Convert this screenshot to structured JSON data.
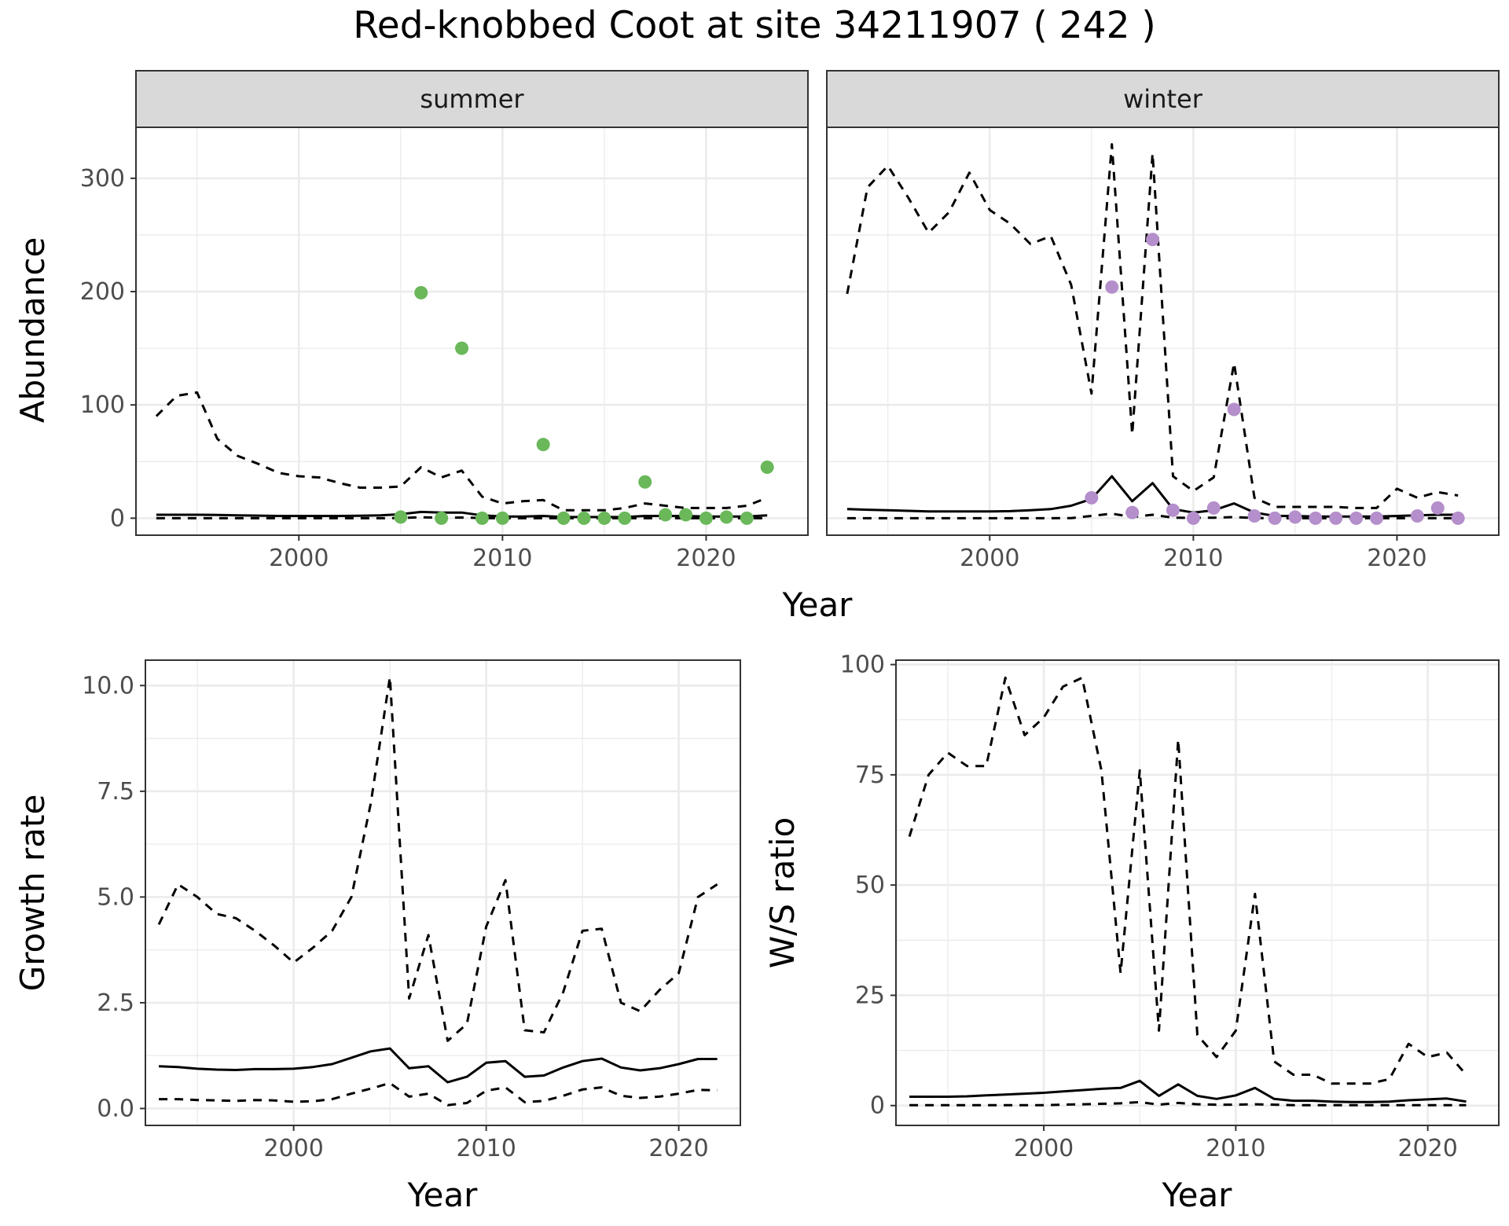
{
  "title": "Red-knobbed Coot at site 34211907 ( 242 )",
  "colors": {
    "summer_points": "#6ab85a",
    "winter_points": "#b48fcb",
    "lines": "#000000",
    "grid": "#ebebeb",
    "strip": "#d9d9d9",
    "panel_border": "#333333"
  },
  "chart_data": [
    {
      "type": "line",
      "facet": "summer",
      "strip_label": "summer",
      "xlabel": "Year",
      "ylabel": "Abundance",
      "xlim": [
        1992,
        2025
      ],
      "ylim": [
        -15,
        345
      ],
      "x_ticks": [
        2000,
        2010,
        2020
      ],
      "x_tick_labels": [
        "2000",
        "2010",
        "2020"
      ],
      "y_ticks": [
        0,
        100,
        200,
        300
      ],
      "y_tick_labels": [
        "0",
        "100",
        "200",
        "300"
      ],
      "grid": true,
      "series": [
        {
          "style": "dashed",
          "x": [
            1993,
            1994,
            1995,
            1996,
            1997,
            1998,
            1999,
            2000,
            2001,
            2002,
            2003,
            2004,
            2005,
            2006,
            2007,
            2008,
            2009,
            2010,
            2011,
            2012,
            2013,
            2014,
            2015,
            2016,
            2017,
            2018,
            2019,
            2020,
            2021,
            2022,
            2023
          ],
          "y": [
            90,
            108,
            111,
            70,
            55,
            48,
            40,
            37,
            36,
            31,
            27,
            27,
            28,
            45,
            36,
            42,
            19,
            13,
            15,
            16,
            7,
            7,
            7,
            9,
            13,
            11,
            9,
            9,
            9,
            11,
            18
          ]
        },
        {
          "style": "solid",
          "x": [
            1993,
            1994,
            1995,
            1996,
            1997,
            1998,
            1999,
            2000,
            2001,
            2002,
            2003,
            2004,
            2005,
            2006,
            2007,
            2008,
            2009,
            2010,
            2011,
            2012,
            2013,
            2014,
            2015,
            2016,
            2017,
            2018,
            2019,
            2020,
            2021,
            2022,
            2023
          ],
          "y": [
            3,
            3,
            3,
            2.8,
            2.5,
            2.3,
            2,
            2,
            2,
            2,
            2.1,
            2.5,
            3.5,
            5.5,
            5,
            5,
            2.5,
            1.5,
            1.5,
            2,
            1,
            1,
            1,
            1,
            2,
            2,
            2,
            1.5,
            1.5,
            1.5,
            2.5
          ]
        },
        {
          "style": "dashed",
          "x": [
            1993,
            1994,
            1995,
            1996,
            1997,
            1998,
            1999,
            2000,
            2001,
            2002,
            2003,
            2004,
            2005,
            2006,
            2007,
            2008,
            2009,
            2010,
            2011,
            2012,
            2013,
            2014,
            2015,
            2016,
            2017,
            2018,
            2019,
            2020,
            2021,
            2022,
            2023
          ],
          "y": [
            0,
            0,
            0,
            0,
            0,
            0,
            0,
            0,
            0,
            0,
            0,
            0,
            0.2,
            0.8,
            0.5,
            0.6,
            0.1,
            0,
            0,
            0,
            0,
            0,
            0,
            0,
            0,
            0,
            0,
            0,
            0,
            0,
            0
          ]
        }
      ],
      "points": {
        "x": [
          2005,
          2006,
          2007,
          2008,
          2009,
          2010,
          2012,
          2013,
          2014,
          2015,
          2016,
          2017,
          2018,
          2019,
          2020,
          2021,
          2022,
          2023
        ],
        "y": [
          1,
          199,
          0,
          150,
          0,
          0,
          65,
          0,
          0,
          0,
          0,
          32,
          3,
          3,
          0,
          1,
          0,
          45
        ]
      }
    },
    {
      "type": "line",
      "facet": "winter",
      "strip_label": "winter",
      "xlabel": "Year",
      "ylabel": "Abundance",
      "xlim": [
        1992,
        2025
      ],
      "ylim": [
        -15,
        345
      ],
      "x_ticks": [
        2000,
        2010,
        2020
      ],
      "x_tick_labels": [
        "2000",
        "2010",
        "2020"
      ],
      "y_ticks": [
        0,
        100,
        200,
        300
      ],
      "grid": true,
      "series": [
        {
          "style": "dashed",
          "x": [
            1993,
            1994,
            1995,
            1996,
            1997,
            1998,
            1999,
            2000,
            2001,
            2002,
            2003,
            2004,
            2005,
            2006,
            2007,
            2008,
            2009,
            2010,
            2011,
            2012,
            2013,
            2014,
            2015,
            2016,
            2017,
            2018,
            2019,
            2020,
            2021,
            2022,
            2023
          ],
          "y": [
            198,
            292,
            311,
            283,
            252,
            270,
            305,
            272,
            260,
            242,
            249,
            206,
            110,
            330,
            74,
            322,
            37,
            24,
            36,
            137,
            18,
            10,
            10,
            10,
            10,
            9,
            9,
            26,
            18,
            23,
            20
          ]
        },
        {
          "style": "solid",
          "x": [
            1993,
            1994,
            1995,
            1996,
            1997,
            1998,
            1999,
            2000,
            2001,
            2002,
            2003,
            2004,
            2005,
            2006,
            2007,
            2008,
            2009,
            2010,
            2011,
            2012,
            2013,
            2014,
            2015,
            2016,
            2017,
            2018,
            2019,
            2020,
            2021,
            2022,
            2023
          ],
          "y": [
            8,
            7.5,
            7,
            6.5,
            6,
            6,
            6,
            6,
            6.2,
            7,
            8,
            11,
            17,
            37,
            15,
            31,
            8,
            5,
            7,
            13,
            5,
            2,
            2,
            1.5,
            1.5,
            1.5,
            1.5,
            2,
            2.5,
            3,
            3
          ]
        },
        {
          "style": "dashed",
          "x": [
            1993,
            1994,
            1995,
            1996,
            1997,
            1998,
            1999,
            2000,
            2001,
            2002,
            2003,
            2004,
            2005,
            2006,
            2007,
            2008,
            2009,
            2010,
            2011,
            2012,
            2013,
            2014,
            2015,
            2016,
            2017,
            2018,
            2019,
            2020,
            2021,
            2022,
            2023
          ],
          "y": [
            0,
            0,
            0,
            0,
            0,
            0,
            0,
            0,
            0,
            0,
            0,
            0.1,
            2,
            4,
            1,
            3,
            0.5,
            0.3,
            0.5,
            1,
            0.2,
            0,
            0,
            0,
            0,
            0,
            0,
            0,
            0,
            0,
            0
          ]
        }
      ],
      "points": {
        "x": [
          2005,
          2006,
          2007,
          2008,
          2009,
          2010,
          2011,
          2012,
          2013,
          2014,
          2015,
          2016,
          2017,
          2018,
          2019,
          2021,
          2022,
          2023
        ],
        "y": [
          18,
          204,
          5,
          246,
          7,
          0,
          9,
          96,
          2,
          0,
          1,
          0,
          0,
          0,
          0,
          2,
          9,
          0
        ]
      }
    },
    {
      "type": "line",
      "facet": "growth",
      "xlabel": "Year",
      "ylabel": "Growth rate",
      "xlim": [
        1992.3,
        2023.2
      ],
      "ylim": [
        -0.4,
        10.6
      ],
      "x_ticks": [
        2000,
        2010,
        2020
      ],
      "x_tick_labels": [
        "2000",
        "2010",
        "2020"
      ],
      "y_ticks": [
        0,
        2.5,
        5,
        7.5,
        10
      ],
      "y_tick_labels": [
        "0.0",
        "2.5",
        "5.0",
        "7.5",
        "10.0"
      ],
      "grid": true,
      "series": [
        {
          "style": "dashed",
          "x": [
            1993,
            1994,
            1995,
            1996,
            1997,
            1998,
            1999,
            2000,
            2001,
            2002,
            2003,
            2004,
            2005,
            2006,
            2007,
            2008,
            2009,
            2010,
            2011,
            2012,
            2013,
            2014,
            2015,
            2016,
            2017,
            2018,
            2019,
            2020,
            2021,
            2022
          ],
          "y": [
            4.35,
            5.3,
            5.0,
            4.6,
            4.5,
            4.2,
            3.85,
            3.45,
            3.8,
            4.2,
            5.0,
            7.2,
            10.2,
            2.6,
            4.1,
            1.6,
            2.0,
            4.3,
            5.4,
            1.85,
            1.8,
            2.75,
            4.2,
            4.25,
            2.5,
            2.3,
            2.8,
            3.2,
            5.0,
            5.3
          ]
        },
        {
          "style": "solid",
          "x": [
            1993,
            1994,
            1995,
            1996,
            1997,
            1998,
            1999,
            2000,
            2001,
            2002,
            2003,
            2004,
            2005,
            2006,
            2007,
            2008,
            2009,
            2010,
            2011,
            2012,
            2013,
            2014,
            2015,
            2016,
            2017,
            2018,
            2019,
            2020,
            2021,
            2022
          ],
          "y": [
            1.0,
            0.98,
            0.94,
            0.92,
            0.91,
            0.93,
            0.93,
            0.94,
            0.98,
            1.05,
            1.2,
            1.35,
            1.42,
            0.95,
            1.0,
            0.62,
            0.75,
            1.08,
            1.12,
            0.75,
            0.78,
            0.97,
            1.12,
            1.18,
            0.97,
            0.9,
            0.95,
            1.05,
            1.17,
            1.17
          ]
        },
        {
          "style": "dashed",
          "x": [
            1993,
            1994,
            1995,
            1996,
            1997,
            1998,
            1999,
            2000,
            2001,
            2002,
            2003,
            2004,
            2005,
            2006,
            2007,
            2008,
            2009,
            2010,
            2011,
            2012,
            2013,
            2014,
            2015,
            2016,
            2017,
            2018,
            2019,
            2020,
            2021,
            2022
          ],
          "y": [
            0.22,
            0.22,
            0.2,
            0.19,
            0.18,
            0.2,
            0.19,
            0.16,
            0.17,
            0.22,
            0.35,
            0.47,
            0.6,
            0.28,
            0.35,
            0.08,
            0.13,
            0.42,
            0.5,
            0.15,
            0.18,
            0.3,
            0.45,
            0.5,
            0.3,
            0.25,
            0.28,
            0.35,
            0.44,
            0.43
          ]
        }
      ]
    },
    {
      "type": "line",
      "facet": "ws-ratio",
      "xlabel": "Year",
      "ylabel": "W/S ratio",
      "xlim": [
        1992.3,
        2023.7
      ],
      "ylim": [
        -4.5,
        101
      ],
      "x_ticks": [
        2000,
        2010,
        2020
      ],
      "x_tick_labels": [
        "2000",
        "2010",
        "2020"
      ],
      "y_ticks": [
        0,
        25,
        50,
        75,
        100
      ],
      "y_tick_labels": [
        "0",
        "25",
        "50",
        "75",
        "100"
      ],
      "grid": true,
      "series": [
        {
          "style": "dashed",
          "x": [
            1993,
            1994,
            1995,
            1996,
            1997,
            1998,
            1999,
            2000,
            2001,
            2002,
            2003,
            2004,
            2005,
            2006,
            2007,
            2008,
            2009,
            2010,
            2011,
            2012,
            2013,
            2014,
            2015,
            2016,
            2017,
            2018,
            2019,
            2020,
            2021,
            2022
          ],
          "y": [
            61,
            75,
            80,
            77,
            77,
            97,
            84,
            88,
            95,
            97,
            76,
            30,
            76,
            17,
            83,
            16,
            11,
            17,
            48,
            10,
            7,
            7,
            5,
            5,
            5,
            6,
            14,
            11,
            12,
            7
          ]
        },
        {
          "style": "solid",
          "x": [
            1993,
            1994,
            1995,
            1996,
            1997,
            1998,
            1999,
            2000,
            2001,
            2002,
            2003,
            2004,
            2005,
            2006,
            2007,
            2008,
            2009,
            2010,
            2011,
            2012,
            2013,
            2014,
            2015,
            2016,
            2017,
            2018,
            2019,
            2020,
            2021,
            2022
          ],
          "y": [
            2.0,
            2.0,
            2.0,
            2.1,
            2.3,
            2.5,
            2.7,
            2.9,
            3.2,
            3.5,
            3.8,
            4.0,
            5.6,
            2.2,
            4.8,
            2.2,
            1.5,
            2.3,
            4.0,
            1.5,
            1.1,
            1.1,
            0.9,
            0.8,
            0.8,
            0.9,
            1.2,
            1.4,
            1.6,
            0.9
          ]
        },
        {
          "style": "dashed",
          "x": [
            1993,
            1994,
            1995,
            1996,
            1997,
            1998,
            1999,
            2000,
            2001,
            2002,
            2003,
            2004,
            2005,
            2006,
            2007,
            2008,
            2009,
            2010,
            2011,
            2012,
            2013,
            2014,
            2015,
            2016,
            2017,
            2018,
            2019,
            2020,
            2021,
            2022
          ],
          "y": [
            0.1,
            0.1,
            0.1,
            0.1,
            0.1,
            0.1,
            0.1,
            0.1,
            0.2,
            0.3,
            0.4,
            0.5,
            0.8,
            0.2,
            0.6,
            0.3,
            0.2,
            0.2,
            0.3,
            0.2,
            0.1,
            0.1,
            0.1,
            0.1,
            0.1,
            0.1,
            0.1,
            0.1,
            0.1,
            0.1
          ]
        }
      ]
    }
  ]
}
